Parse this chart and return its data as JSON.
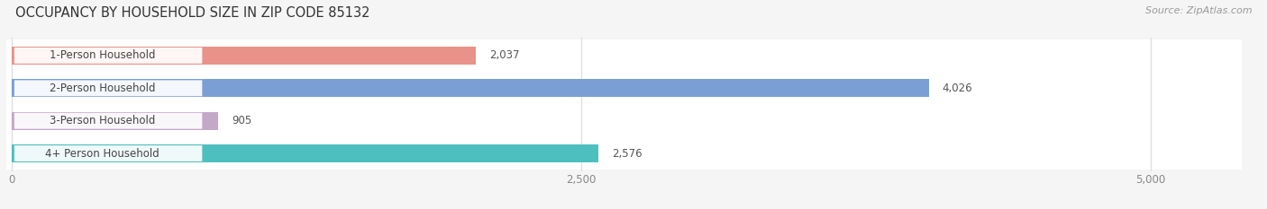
{
  "title": "OCCUPANCY BY HOUSEHOLD SIZE IN ZIP CODE 85132",
  "source": "Source: ZipAtlas.com",
  "categories": [
    "1-Person Household",
    "2-Person Household",
    "3-Person Household",
    "4+ Person Household"
  ],
  "values": [
    2037,
    4026,
    905,
    2576
  ],
  "bar_colors": [
    "#E8928A",
    "#7B9FD4",
    "#C4A8C8",
    "#4DBFBF"
  ],
  "xlim_min": 0,
  "xlim_max": 5000,
  "xticks": [
    0,
    2500,
    5000
  ],
  "xtick_labels": [
    "0",
    "2,500",
    "5,000"
  ],
  "bg_color": "#f5f5f5",
  "bar_row_color": "#ffffff",
  "grid_color": "#e0e0e0",
  "title_fontsize": 10.5,
  "source_fontsize": 8,
  "label_fontsize": 8.5,
  "value_fontsize": 8.5,
  "label_text_color": "#444444",
  "value_text_color": "#555555",
  "tick_color": "#888888"
}
